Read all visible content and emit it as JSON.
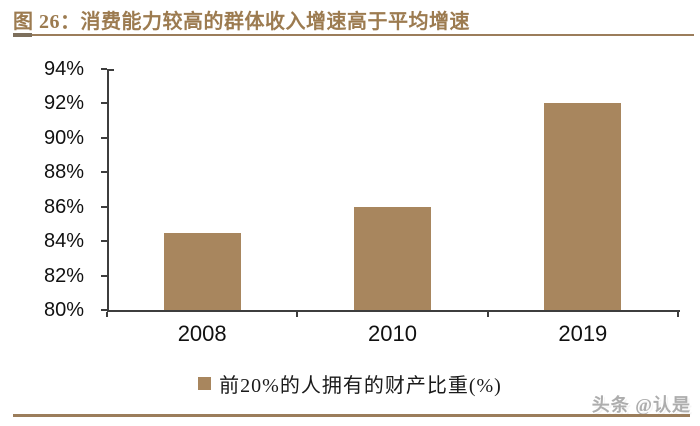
{
  "figure": {
    "title": "图 26：消费能力较高的群体收入增速高于平均增速",
    "watermark": "头条 @认是"
  },
  "chart_data": {
    "type": "bar",
    "title": "消费能力较高的群体收入增速高于平均增速",
    "categories": [
      "2008",
      "2010",
      "2019"
    ],
    "values": [
      84.5,
      86,
      92
    ],
    "series_name": "前20%的人拥有的财产比重(%)",
    "xlabel": "",
    "ylabel": "",
    "ylim": [
      80,
      94
    ],
    "ytick_step": 2,
    "yticks": [
      "94%",
      "92%",
      "90%",
      "88%",
      "86%",
      "84%",
      "82%",
      "80%"
    ],
    "grid": "off",
    "legend_position": "bottom",
    "bar_color": "#A8865E"
  },
  "colors": {
    "brand_brown": "#9C7B50",
    "bar": "#A8865E",
    "rule": "#9B7D5B",
    "rule_accent": "#7D6F5C",
    "axis": "#3d3d3d",
    "tick_text": "#111111",
    "watermark_gray": "#ADADAD"
  }
}
